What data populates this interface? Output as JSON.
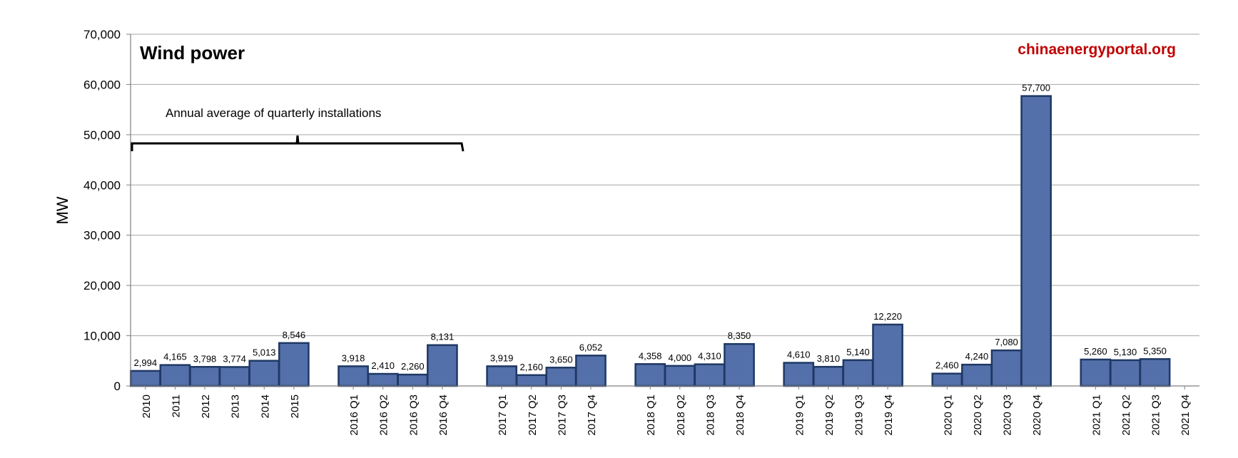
{
  "chart_data": {
    "type": "bar",
    "title": "Wind power",
    "ylabel": "MW",
    "xlabel": "",
    "ylim": [
      0,
      70000
    ],
    "yticks": [
      0,
      10000,
      20000,
      30000,
      40000,
      50000,
      60000,
      70000
    ],
    "ytick_labels": [
      "0",
      "10,000",
      "20,000",
      "30,000",
      "40,000",
      "50,000",
      "60,000",
      "70,000"
    ],
    "grid": "horizontal",
    "legend": "none",
    "source_text": "chinaenergyportal.org",
    "annotation": "Annual average of quarterly installations",
    "categories": [
      "2010",
      "2011",
      "2012",
      "2013",
      "2014",
      "2015",
      "2016 Q1",
      "2016 Q2",
      "2016 Q3",
      "2016 Q4",
      "2017 Q1",
      "2017 Q2",
      "2017 Q3",
      "2017 Q4",
      "2018 Q1",
      "2018 Q2",
      "2018 Q3",
      "2018 Q4",
      "2019 Q1",
      "2019 Q2",
      "2019 Q3",
      "2019 Q4",
      "2020 Q1",
      "2020 Q2",
      "2020 Q3",
      "2020 Q4",
      "2021 Q1",
      "2021 Q2",
      "2021 Q3",
      "2021 Q4"
    ],
    "values": [
      2994,
      4165,
      3798,
      3774,
      5013,
      8546,
      3918,
      2410,
      2260,
      8131,
      3919,
      2160,
      3650,
      6052,
      4358,
      4000,
      4310,
      8350,
      4610,
      3810,
      5140,
      12220,
      2460,
      4240,
      7080,
      57700,
      5260,
      5130,
      5350,
      null
    ],
    "data_labels": [
      "2,994",
      "4,165",
      "3,798",
      "3,774",
      "5,013",
      "8,546",
      "3,918",
      "2,410",
      "2,260",
      "8,131",
      "3,919",
      "2,160",
      "3,650",
      "6,052",
      "4,358",
      "4,000",
      "4,310",
      "8,350",
      "4,610",
      "3,810",
      "5,140",
      "12,220",
      "2,460",
      "4,240",
      "7,080",
      "57,700",
      "5,260",
      "5,130",
      "5,350",
      ""
    ],
    "colors": {
      "bar_fill": "#5470aa",
      "bar_stroke": "#1f3864",
      "grid": "#a6a6a6",
      "source_text": "#c00000"
    }
  }
}
